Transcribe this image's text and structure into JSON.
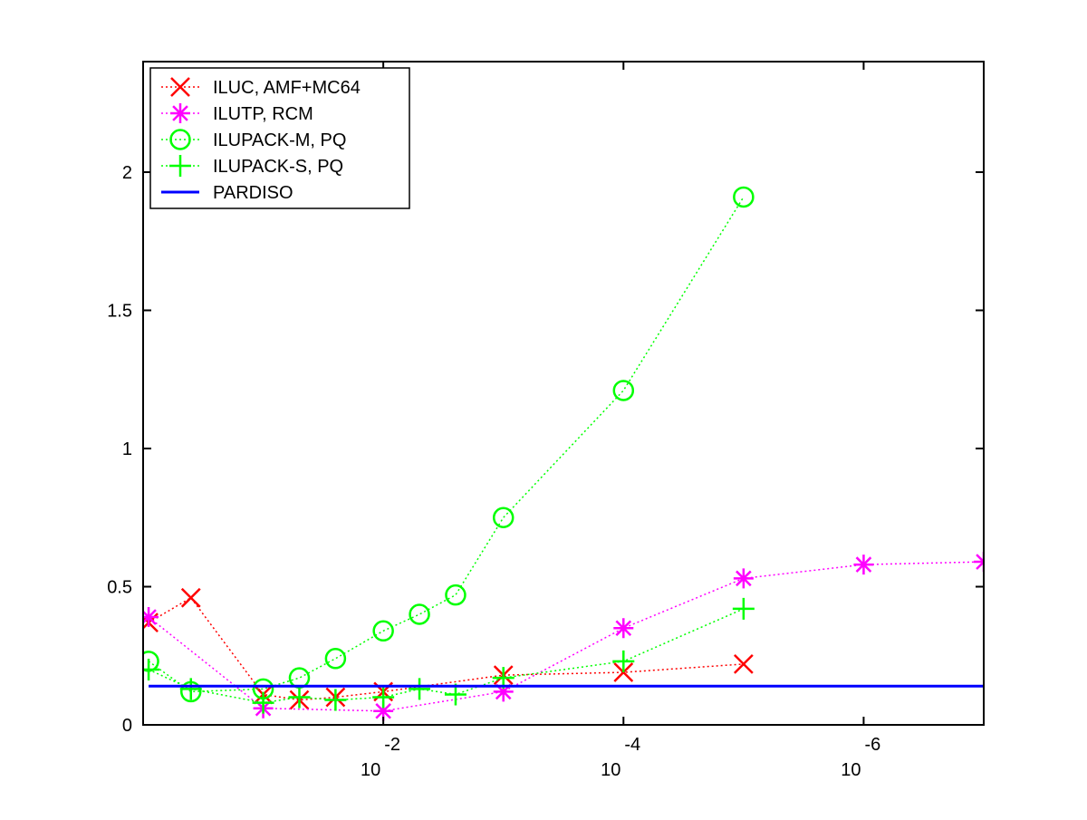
{
  "chart_data": {
    "type": "line",
    "title": "",
    "xlabel": "",
    "ylabel": "",
    "x_scale": "log",
    "x_reversed": true,
    "xlim": [
      1,
      1e-07
    ],
    "ylim": [
      0,
      2.4
    ],
    "x_ticks": [
      {
        "value": 0.01,
        "base": "10",
        "exponent": "-2"
      },
      {
        "value": 0.0001,
        "base": "10",
        "exponent": "-4"
      },
      {
        "value": 1e-06,
        "base": "10",
        "exponent": "-6"
      }
    ],
    "y_ticks": [
      {
        "value": 0,
        "label": "0"
      },
      {
        "value": 0.5,
        "label": "0.5"
      },
      {
        "value": 1,
        "label": "1"
      },
      {
        "value": 1.5,
        "label": "1.5"
      },
      {
        "value": 2,
        "label": "2"
      }
    ],
    "grid": false,
    "legend_position": "top-left",
    "series": [
      {
        "name": "ILUC, AMF+MC64",
        "color": "#ff0000",
        "marker": "x",
        "line_style": "dotted",
        "points": [
          {
            "x": 0.9,
            "y": 0.37
          },
          {
            "x": 0.4,
            "y": 0.46
          },
          {
            "x": 0.1,
            "y": 0.11
          },
          {
            "x": 0.05,
            "y": 0.09
          },
          {
            "x": 0.025,
            "y": 0.1
          },
          {
            "x": 0.01,
            "y": 0.12
          },
          {
            "x": 0.001,
            "y": 0.18
          },
          {
            "x": 0.0001,
            "y": 0.19
          },
          {
            "x": 1e-05,
            "y": 0.22
          }
        ]
      },
      {
        "name": "ILUTP, RCM",
        "color": "#ff00ff",
        "marker": "asterisk",
        "line_style": "dotted",
        "points": [
          {
            "x": 0.9,
            "y": 0.39
          },
          {
            "x": 0.1,
            "y": 0.06
          },
          {
            "x": 0.01,
            "y": 0.05
          },
          {
            "x": 0.001,
            "y": 0.12
          },
          {
            "x": 0.0001,
            "y": 0.35
          },
          {
            "x": 1e-05,
            "y": 0.53
          },
          {
            "x": 1e-06,
            "y": 0.58
          },
          {
            "x": 1e-07,
            "y": 0.59
          }
        ]
      },
      {
        "name": "ILUPACK-M, PQ",
        "color": "#00ff00",
        "marker": "circle",
        "line_style": "dotted",
        "points": [
          {
            "x": 0.9,
            "y": 0.23
          },
          {
            "x": 0.4,
            "y": 0.12
          },
          {
            "x": 0.1,
            "y": 0.13
          },
          {
            "x": 0.05,
            "y": 0.17
          },
          {
            "x": 0.025,
            "y": 0.24
          },
          {
            "x": 0.01,
            "y": 0.34
          },
          {
            "x": 0.005,
            "y": 0.4
          },
          {
            "x": 0.0025,
            "y": 0.47
          },
          {
            "x": 0.001,
            "y": 0.75
          },
          {
            "x": 0.0001,
            "y": 1.21
          },
          {
            "x": 1e-05,
            "y": 1.91
          }
        ]
      },
      {
        "name": "ILUPACK-S, PQ",
        "color": "#00ff00",
        "marker": "plus",
        "line_style": "dotted",
        "points": [
          {
            "x": 0.9,
            "y": 0.2
          },
          {
            "x": 0.4,
            "y": 0.13
          },
          {
            "x": 0.1,
            "y": 0.08
          },
          {
            "x": 0.05,
            "y": 0.1
          },
          {
            "x": 0.025,
            "y": 0.09
          },
          {
            "x": 0.01,
            "y": 0.1
          },
          {
            "x": 0.005,
            "y": 0.13
          },
          {
            "x": 0.0025,
            "y": 0.11
          },
          {
            "x": 0.001,
            "y": 0.17
          },
          {
            "x": 0.0001,
            "y": 0.23
          },
          {
            "x": 1e-05,
            "y": 0.42
          }
        ]
      },
      {
        "name": "PARDISO",
        "color": "#0000ff",
        "marker": "none",
        "line_style": "solid",
        "constant_y": 0.14
      }
    ]
  }
}
